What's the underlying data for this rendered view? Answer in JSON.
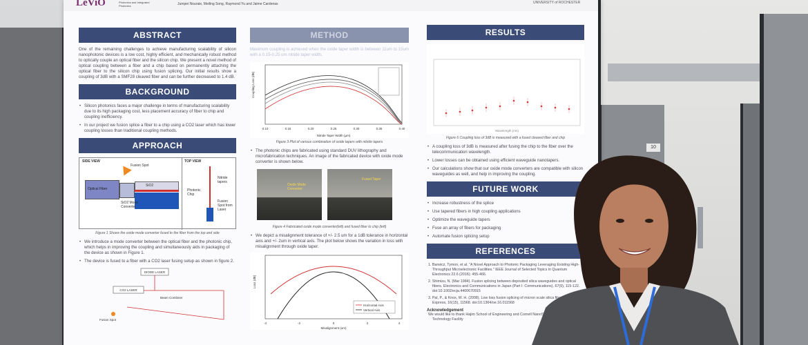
{
  "poster": {
    "logo_text": "LeViO",
    "logo_subtitle": "Photonics and Integrated Photonics",
    "authors": "Jumpei Nouraie, Meiling Song, Raymond Yu and Jaime Cardenas",
    "institution": "UNIVERSITY of ROCHESTER",
    "abstract": {
      "title": "ABSTRACT",
      "text": "One of the remaining challenges to achieve manufacturing scalability of silicon nanophotonic devices is a low cost, highly efficient, and mechanically robust method to optically couple an optical fiber and the silicon chip. We present a novel method of optical coupling between a fiber and a chip based on permanently attaching the optical fiber to the silicon chip using fusion splicing. Our initial results show a coupling of 3dB with a SMF28 cleaved fiber and can be further decreased to 1.4 dB."
    },
    "background": {
      "title": "BACKGROUND",
      "bullets": [
        "Silicon photonics faces a major challenge in terms of manufacturing scalability due to its high packaging cost, less placement accuracy of fiber to chip and coupling inefficiency.",
        "In our project we fusion splice a fiber to a chip using a CO2 laser which has lower coupling losses than traditional coupling methods."
      ]
    },
    "approach": {
      "title": "APPROACH",
      "side_view": "SIDE VIEW",
      "top_view": "TOP VIEW",
      "optical_fiber": "Optical Fiber",
      "fusion_spot": "Fusion Spot",
      "sio2_mode": "SiO2 Mode Converter",
      "sio2": "SiO2",
      "photonic_chip": "Photonic Chip",
      "nitride_tapers": "Nitride tapers",
      "fusion_spot_laser": "Fusion Spot from Laser",
      "caption": "Figure 1 Shows the oxide mode converter fused to the fiber from the top and side",
      "bullets": [
        "We introduce a mode converter between the optical fiber and the photonic chip, which helps in improving the coupling and simultaneously aids in packaging of the device as shown in Figure 1.",
        "The device is fused to a fiber with a CO2 laser fusing setup as shown in figure 2."
      ],
      "diode_laser": "DIODE LASER",
      "co2_laser": "CO2 LASER",
      "beam_combiner": "Beam Combiner",
      "fusion_spot_2": "Fusion Spot"
    },
    "method": {
      "title": "METHOD",
      "text": "Maximum coupling is achieved when the oxide taper width is between 11um to 15um with a 0.15-0.25 um nitride taper width.",
      "plot1_xlabel": "Nitride Taper Width (µm)",
      "plot1_ylabel": "Coupling Loss (dB)",
      "plot1_xticks": [
        "0.10",
        "0.15",
        "0.20",
        "0.25",
        "0.30",
        "0.35",
        "0.40"
      ],
      "plot1_caption": "Figure 3 Plot of various combination of oxide tapers with nitride tapers",
      "bullet1": "The photonic chips are fabricated using standard DUV lithography and microfabrication techniques. An image of the fabricated device with oxide mode converter is shown below.",
      "img_label1": "Oxide Mode Converter",
      "img_label2": "Fused Taper",
      "img_caption": "Figure 4 Fabricated oxide mode converter(left) and fused fiber to chip (left)",
      "bullet2": "We depict a misalignment tolerance of +/- 2.5 um for a 1dB tolerance in horizontal axis and +/- 2um in vertical axis. The plot below shows the variation in loss with misalignment through oxide taper.",
      "plot2_ylabel": "Loss (dB)",
      "plot2_xlabel": "Misalignment (um)",
      "plot2_legend": [
        "Horizontal Axis",
        "Vertical Axis"
      ],
      "plot2_xticks": [
        "-4",
        "-2",
        "0",
        "2",
        "4"
      ]
    },
    "results": {
      "title": "RESULTS",
      "plot_xlabel": "Wavelength (nm)",
      "plot_caption": "Figure 6 Coupling loss of 3dB is measured with a fused cleaved fiber and chip",
      "bullets": [
        "A coupling loss of 3dB is measured after fusing the chip to the fiber over the telecommunication wavelength.",
        "Lower losses can be obtained using efficient waveguide nanotapers.",
        "Our calculations show that our oxide mode converters are compatible with silicon waveguides as well, and help in improving the coupling."
      ]
    },
    "future_work": {
      "title": "FUTURE WORK",
      "bullets": [
        "Increase robustness of the splice",
        "Use tapered fibers in high coupling applications",
        "Optimize the waveguide tapers",
        "Fuse an array of fibers for packaging",
        "Automate fusion splicing setup"
      ]
    },
    "references": {
      "title": "REFERENCES",
      "items": [
        "1. Barwicz, Tymon, et al. \"A Novel Approach to Photonic Packaging Leveraging Existing High-Throughput Microelectronic Facilities.\" IEEE Journal of Selected Topics in Quantum Electronics 22.6 (2016): 455-466.",
        "2. Shimizu, N. (Mar 1984). Fusion splicing between deposited silica waveguides and optical fibers. Electronics and Communications in Japan (Part I: Communications), 67(9), 115-122. doi:10.1002/ecja.4400670915",
        "3. Pal, P., & Knox, W. H. (2008). Low loss fusion splicing of micron scale silica fibers. Optics Express, 16(15), 11568. doi:10.1364/oe.16.011568"
      ],
      "ack_title": "Acknowledgement",
      "ack_text": "We would like to thank Hajim School of Engineering and Cornell NanoScale Science & Technology Facility"
    }
  },
  "scene": {
    "booth_number": "10"
  }
}
